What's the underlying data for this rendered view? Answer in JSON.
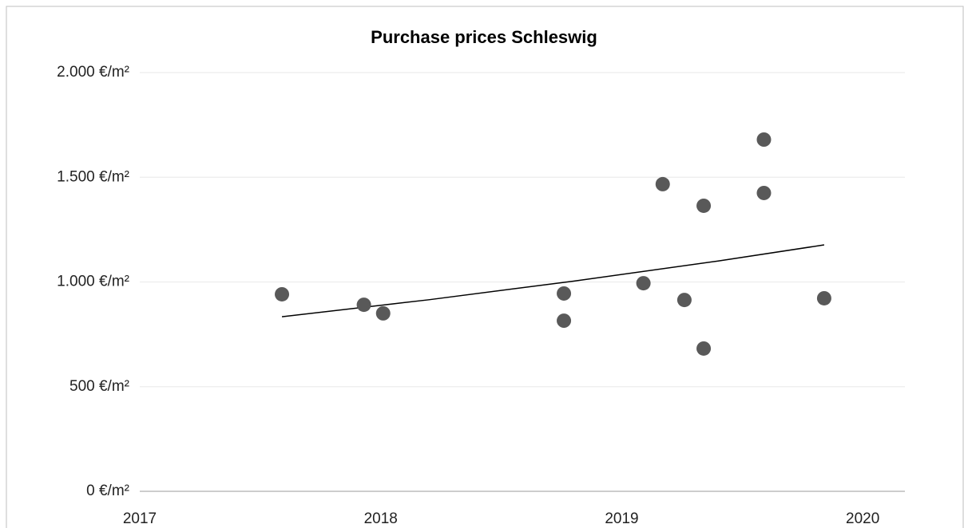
{
  "chart_data": {
    "type": "scatter",
    "title": "Purchase prices Schleswig",
    "x": [
      2017.59,
      2017.93,
      2018.01,
      2018.76,
      2018.76,
      2019.09,
      2019.17,
      2019.26,
      2019.34,
      2019.34,
      2019.59,
      2019.59,
      2019.84
    ],
    "values": [
      941,
      891,
      850,
      945,
      815,
      994,
      1467,
      914,
      1364,
      682,
      1680,
      1425,
      922
    ],
    "color": "#595959",
    "trendline": {
      "x": [
        2017.59,
        2018.2,
        2018.8,
        2019.4,
        2019.84
      ],
      "values": [
        834,
        915,
        1004,
        1100,
        1177
      ],
      "color": "#000000"
    },
    "xlim": [
      2017,
      2020.175
    ],
    "xticks": [
      2017,
      2018,
      2019,
      2020
    ],
    "ylim": [
      0,
      2000
    ],
    "yticks": [
      {
        "value": 0,
        "label": "0 €/m²"
      },
      {
        "value": 500,
        "label": "500 €/m²"
      },
      {
        "value": 1000,
        "label": "1.000 €/m²"
      },
      {
        "value": 1500,
        "label": "1.500 €/m²"
      },
      {
        "value": 2000,
        "label": "2.000 €/m²"
      }
    ],
    "grid": true
  }
}
